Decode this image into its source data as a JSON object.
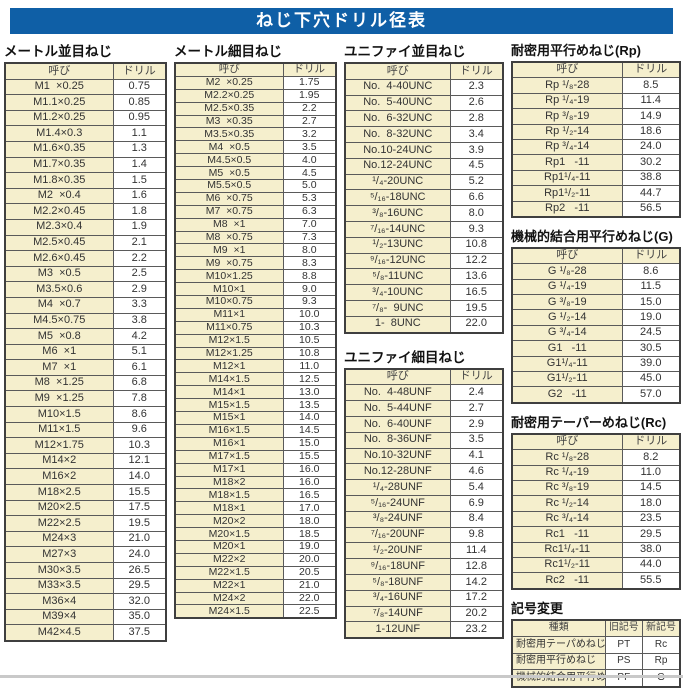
{
  "title": "ねじ下穴ドリル径表",
  "colors": {
    "title_bar_blue": "#0f5fa6",
    "cell_beige": "#f5efcd",
    "border_dark": "#3f3f3f",
    "text": "#333333"
  },
  "tables": {
    "metric_coarse": {
      "heading": "メートル並目ねじ",
      "columns": [
        "呼び",
        "ドリル"
      ],
      "rows": [
        [
          "M1  ×0.25",
          "0.75"
        ],
        [
          "M1.1×0.25",
          "0.85"
        ],
        [
          "M1.2×0.25",
          "0.95"
        ],
        [
          "M1.4×0.3",
          "1.1"
        ],
        [
          "M1.6×0.35",
          "1.3"
        ],
        [
          "M1.7×0.35",
          "1.4"
        ],
        [
          "M1.8×0.35",
          "1.5"
        ],
        [
          "M2  ×0.4",
          "1.6"
        ],
        [
          "M2.2×0.45",
          "1.8"
        ],
        [
          "M2.3×0.4",
          "1.9"
        ],
        [
          "M2.5×0.45",
          "2.1"
        ],
        [
          "M2.6×0.45",
          "2.2"
        ],
        [
          "M3  ×0.5",
          "2.5"
        ],
        [
          "M3.5×0.6",
          "2.9"
        ],
        [
          "M4  ×0.7",
          "3.3"
        ],
        [
          "M4.5×0.75",
          "3.8"
        ],
        [
          "M5  ×0.8",
          "4.2"
        ],
        [
          "M6  ×1",
          "5.1"
        ],
        [
          "M7  ×1",
          "6.1"
        ],
        [
          "M8  ×1.25",
          "6.8"
        ],
        [
          "M9  ×1.25",
          "7.8"
        ],
        [
          "M10×1.5",
          "8.6"
        ],
        [
          "M11×1.5",
          "9.6"
        ],
        [
          "M12×1.75",
          "10.3"
        ],
        [
          "M14×2",
          "12.1"
        ],
        [
          "M16×2",
          "14.0"
        ],
        [
          "M18×2.5",
          "15.5"
        ],
        [
          "M20×2.5",
          "17.5"
        ],
        [
          "M22×2.5",
          "19.5"
        ],
        [
          "M24×3",
          "21.0"
        ],
        [
          "M27×3",
          "24.0"
        ],
        [
          "M30×3.5",
          "26.5"
        ],
        [
          "M33×3.5",
          "29.5"
        ],
        [
          "M36×4",
          "32.0"
        ],
        [
          "M39×4",
          "35.0"
        ],
        [
          "M42×4.5",
          "37.5"
        ]
      ]
    },
    "metric_fine": {
      "heading": "メートル細目ねじ",
      "columns": [
        "呼び",
        "ドリル"
      ],
      "rows": [
        [
          "M2  ×0.25",
          "1.75"
        ],
        [
          "M2.2×0.25",
          "1.95"
        ],
        [
          "M2.5×0.35",
          "2.2"
        ],
        [
          "M3  ×0.35",
          "2.7"
        ],
        [
          "M3.5×0.35",
          "3.2"
        ],
        [
          "M4  ×0.5",
          "3.5"
        ],
        [
          "M4.5×0.5",
          "4.0"
        ],
        [
          "M5  ×0.5",
          "4.5"
        ],
        [
          "M5.5×0.5",
          "5.0"
        ],
        [
          "M6  ×0.75",
          "5.3"
        ],
        [
          "M7  ×0.75",
          "6.3"
        ],
        [
          "M8  ×1",
          "7.0"
        ],
        [
          "M8  ×0.75",
          "7.3"
        ],
        [
          "M9  ×1",
          "8.0"
        ],
        [
          "M9  ×0.75",
          "8.3"
        ],
        [
          "M10×1.25",
          "8.8"
        ],
        [
          "M10×1",
          "9.0"
        ],
        [
          "M10×0.75",
          "9.3"
        ],
        [
          "M11×1",
          "10.0"
        ],
        [
          "M11×0.75",
          "10.3"
        ],
        [
          "M12×1.5",
          "10.5"
        ],
        [
          "M12×1.25",
          "10.8"
        ],
        [
          "M12×1",
          "11.0"
        ],
        [
          "M14×1.5",
          "12.5"
        ],
        [
          "M14×1",
          "13.0"
        ],
        [
          "M15×1.5",
          "13.5"
        ],
        [
          "M15×1",
          "14.0"
        ],
        [
          "M16×1.5",
          "14.5"
        ],
        [
          "M16×1",
          "15.0"
        ],
        [
          "M17×1.5",
          "15.5"
        ],
        [
          "M17×1",
          "16.0"
        ],
        [
          "M18×2",
          "16.0"
        ],
        [
          "M18×1.5",
          "16.5"
        ],
        [
          "M18×1",
          "17.0"
        ],
        [
          "M20×2",
          "18.0"
        ],
        [
          "M20×1.5",
          "18.5"
        ],
        [
          "M20×1",
          "19.0"
        ],
        [
          "M22×2",
          "20.0"
        ],
        [
          "M22×1.5",
          "20.5"
        ],
        [
          "M22×1",
          "21.0"
        ],
        [
          "M24×2",
          "22.0"
        ],
        [
          "M24×1.5",
          "22.5"
        ]
      ]
    },
    "unified_coarse": {
      "heading": "ユニファイ並目ねじ",
      "columns": [
        "呼び",
        "ドリル"
      ],
      "rows": [
        [
          "No.  4-40UNC",
          "2.3"
        ],
        [
          "No.  5-40UNC",
          "2.6"
        ],
        [
          "No.  6-32UNC",
          "2.8"
        ],
        [
          "No.  8-32UNC",
          "3.4"
        ],
        [
          "No.10-24UNC",
          "3.9"
        ],
        [
          "No.12-24UNC",
          "4.5"
        ],
        [
          "¹/₄-20UNC",
          "5.2"
        ],
        [
          "⁵/₁₆-18UNC",
          "6.6"
        ],
        [
          "³/₈-16UNC",
          "8.0"
        ],
        [
          "⁷/₁₆-14UNC",
          "9.3"
        ],
        [
          "¹/₂-13UNC",
          "10.8"
        ],
        [
          "⁹/₁₆-12UNC",
          "12.2"
        ],
        [
          "⁵/₈-11UNC",
          "13.6"
        ],
        [
          "³/₄-10UNC",
          "16.5"
        ],
        [
          "⁷/₈-  9UNC",
          "19.5"
        ],
        [
          "1-  8UNC",
          "22.0"
        ]
      ]
    },
    "unified_fine": {
      "heading": "ユニファイ細目ねじ",
      "columns": [
        "呼び",
        "ドリル"
      ],
      "rows": [
        [
          "No.  4-48UNF",
          "2.4"
        ],
        [
          "No.  5-44UNF",
          "2.7"
        ],
        [
          "No.  6-40UNF",
          "2.9"
        ],
        [
          "No.  8-36UNF",
          "3.5"
        ],
        [
          "No.10-32UNF",
          "4.1"
        ],
        [
          "No.12-28UNF",
          "4.6"
        ],
        [
          "¹/₄-28UNF",
          "5.4"
        ],
        [
          "⁵/₁₆-24UNF",
          "6.9"
        ],
        [
          "³/₈-24UNF",
          "8.4"
        ],
        [
          "⁷/₁₆-20UNF",
          "9.8"
        ],
        [
          "¹/₂-20UNF",
          "11.4"
        ],
        [
          "⁹/₁₆-18UNF",
          "12.8"
        ],
        [
          "⁵/₈-18UNF",
          "14.2"
        ],
        [
          "³/₄-16UNF",
          "17.2"
        ],
        [
          "⁷/₈-14UNF",
          "20.2"
        ],
        [
          "1-12UNF",
          "23.2"
        ]
      ]
    },
    "rp": {
      "heading": "耐密用平行めねじ(Rp)",
      "columns": [
        "呼び",
        "ドリル"
      ],
      "rows": [
        [
          "Rp ¹/₈-28",
          "8.5"
        ],
        [
          "Rp ¹/₄-19",
          "11.4"
        ],
        [
          "Rp ³/₈-19",
          "14.9"
        ],
        [
          "Rp ¹/₂-14",
          "18.6"
        ],
        [
          "Rp ³/₄-14",
          "24.0"
        ],
        [
          "Rp1   -11",
          "30.2"
        ],
        [
          "Rp1¹/₄-11",
          "38.8"
        ],
        [
          "Rp1¹/₂-11",
          "44.7"
        ],
        [
          "Rp2   -11",
          "56.5"
        ]
      ]
    },
    "g": {
      "heading": "機械的結合用平行めねじ(G)",
      "columns": [
        "呼び",
        "ドリル"
      ],
      "rows": [
        [
          "G ¹/₈-28",
          "8.6"
        ],
        [
          "G ¹/₄-19",
          "11.5"
        ],
        [
          "G ³/₈-19",
          "15.0"
        ],
        [
          "G ¹/₂-14",
          "19.0"
        ],
        [
          "G ³/₄-14",
          "24.5"
        ],
        [
          "G1   -11",
          "30.5"
        ],
        [
          "G1¹/₄-11",
          "39.0"
        ],
        [
          "G1¹/₂-11",
          "45.0"
        ],
        [
          "G2   -11",
          "57.0"
        ]
      ]
    },
    "rc": {
      "heading": "耐密用テーパーめねじ(Rc)",
      "columns": [
        "呼び",
        "ドリル"
      ],
      "rows": [
        [
          "Rc ¹/₈-28",
          "8.2"
        ],
        [
          "Rc ¹/₄-19",
          "11.0"
        ],
        [
          "Rc ³/₈-19",
          "14.5"
        ],
        [
          "Rc ¹/₂-14",
          "18.0"
        ],
        [
          "Rc ³/₄-14",
          "23.5"
        ],
        [
          "Rc1   -11",
          "29.5"
        ],
        [
          "Rc1¹/₄-11",
          "38.0"
        ],
        [
          "Rc1¹/₂-11",
          "44.0"
        ],
        [
          "Rc2   -11",
          "55.5"
        ]
      ]
    },
    "symbol_change": {
      "heading": "記号変更",
      "columns": [
        "種類",
        "旧記号",
        "新記号"
      ],
      "rows": [
        [
          "耐密用テーパめねじ",
          "PT",
          "Rc"
        ],
        [
          "耐密用平行めねじ",
          "PS",
          "Rp"
        ],
        [
          "機械的結合用平行めねじ",
          "PF",
          "G"
        ]
      ]
    }
  }
}
